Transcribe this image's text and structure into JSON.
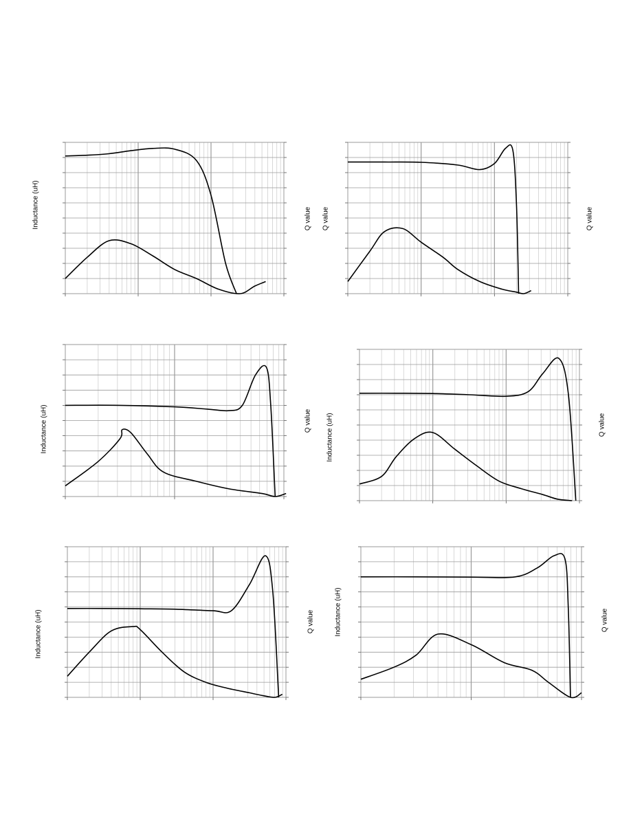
{
  "labels": {
    "left": "Inductance (uH)",
    "right": "Q value"
  },
  "style": {
    "line_color": "#000000",
    "major_grid": "#9a9a9a",
    "minor_grid": "#c8c8c8"
  },
  "chart_data": [
    {
      "type": "line",
      "xscale": "log",
      "x_decades": 3,
      "ylabel_left": "Inductance (uH)",
      "ylabel_right": "Q value",
      "series": [
        {
          "values": [
            [
              0.0,
              0.91
            ],
            [
              0.3,
              0.915
            ],
            [
              0.6,
              0.925
            ],
            [
              0.9,
              0.945
            ],
            [
              1.2,
              0.96
            ],
            [
              1.5,
              0.955
            ],
            [
              1.8,
              0.88
            ],
            [
              2.0,
              0.65
            ],
            [
              2.2,
              0.2
            ],
            [
              2.35,
              0.0
            ]
          ]
        },
        {
          "values": [
            [
              0.0,
              0.1
            ],
            [
              0.3,
              0.24
            ],
            [
              0.6,
              0.35
            ],
            [
              0.9,
              0.33
            ],
            [
              1.2,
              0.25
            ],
            [
              1.5,
              0.16
            ],
            [
              1.8,
              0.1
            ],
            [
              2.1,
              0.03
            ],
            [
              2.4,
              0.0
            ],
            [
              2.6,
              0.05
            ],
            [
              2.75,
              0.08
            ]
          ]
        }
      ]
    },
    {
      "type": "line",
      "xscale": "log",
      "x_decades": 3,
      "ylabel_left": "Q value",
      "ylabel_right": "Q value",
      "series": [
        {
          "values": [
            [
              0.0,
              0.87
            ],
            [
              0.5,
              0.87
            ],
            [
              1.0,
              0.868
            ],
            [
              1.5,
              0.85
            ],
            [
              1.8,
              0.82
            ],
            [
              2.0,
              0.86
            ],
            [
              2.15,
              0.96
            ],
            [
              2.25,
              0.95
            ],
            [
              2.3,
              0.6
            ],
            [
              2.33,
              0.0
            ]
          ]
        },
        {
          "values": [
            [
              0.0,
              0.08
            ],
            [
              0.3,
              0.28
            ],
            [
              0.5,
              0.41
            ],
            [
              0.75,
              0.43
            ],
            [
              1.0,
              0.34
            ],
            [
              1.3,
              0.24
            ],
            [
              1.5,
              0.16
            ],
            [
              1.8,
              0.08
            ],
            [
              2.1,
              0.03
            ],
            [
              2.3,
              0.01
            ],
            [
              2.4,
              0.0
            ],
            [
              2.5,
              0.02
            ]
          ]
        }
      ]
    },
    {
      "type": "line",
      "xscale": "log",
      "x_decades": 2,
      "ylabel_left": "Inductance (uH)",
      "ylabel_right": "Q value",
      "series": [
        {
          "values": [
            [
              0.0,
              0.6
            ],
            [
              0.5,
              0.6
            ],
            [
              1.0,
              0.59
            ],
            [
              1.3,
              0.575
            ],
            [
              1.5,
              0.565
            ],
            [
              1.62,
              0.6
            ],
            [
              1.74,
              0.8
            ],
            [
              1.84,
              0.85
            ],
            [
              1.88,
              0.6
            ],
            [
              1.92,
              0.0
            ]
          ]
        },
        {
          "values": [
            [
              0.0,
              0.07
            ],
            [
              0.3,
              0.23
            ],
            [
              0.5,
              0.38
            ],
            [
              0.52,
              0.44
            ],
            [
              0.6,
              0.42
            ],
            [
              0.75,
              0.28
            ],
            [
              0.9,
              0.16
            ],
            [
              1.2,
              0.1
            ],
            [
              1.5,
              0.05
            ],
            [
              1.8,
              0.02
            ],
            [
              1.92,
              0.0
            ],
            [
              2.02,
              0.02
            ]
          ]
        }
      ]
    },
    {
      "type": "line",
      "xscale": "log",
      "x_decades": 3,
      "ylabel_left": "Inductance (uH)",
      "ylabel_right": "Q value",
      "series": [
        {
          "values": [
            [
              0.0,
              0.71
            ],
            [
              0.5,
              0.71
            ],
            [
              1.0,
              0.708
            ],
            [
              1.5,
              0.7
            ],
            [
              2.0,
              0.69
            ],
            [
              2.3,
              0.72
            ],
            [
              2.5,
              0.84
            ],
            [
              2.72,
              0.94
            ],
            [
              2.85,
              0.7
            ],
            [
              2.95,
              0.0
            ]
          ]
        },
        {
          "values": [
            [
              0.0,
              0.11
            ],
            [
              0.3,
              0.16
            ],
            [
              0.5,
              0.29
            ],
            [
              0.75,
              0.41
            ],
            [
              1.0,
              0.45
            ],
            [
              1.3,
              0.34
            ],
            [
              1.6,
              0.23
            ],
            [
              1.9,
              0.13
            ],
            [
              2.2,
              0.08
            ],
            [
              2.5,
              0.04
            ],
            [
              2.7,
              0.01
            ],
            [
              2.9,
              0.0
            ]
          ]
        }
      ]
    },
    {
      "type": "line",
      "xscale": "log",
      "x_decades": 3,
      "ylabel_left": "Inductance (uH)",
      "ylabel_right": "Q value",
      "series": [
        {
          "values": [
            [
              0.0,
              0.59
            ],
            [
              0.5,
              0.59
            ],
            [
              1.0,
              0.588
            ],
            [
              1.5,
              0.585
            ],
            [
              2.0,
              0.575
            ],
            [
              2.25,
              0.575
            ],
            [
              2.5,
              0.75
            ],
            [
              2.72,
              0.94
            ],
            [
              2.82,
              0.7
            ],
            [
              2.9,
              0.0
            ]
          ]
        },
        {
          "values": [
            [
              0.0,
              0.14
            ],
            [
              0.3,
              0.3
            ],
            [
              0.6,
              0.44
            ],
            [
              0.9,
              0.47
            ],
            [
              1.0,
              0.45
            ],
            [
              1.3,
              0.3
            ],
            [
              1.6,
              0.17
            ],
            [
              1.9,
              0.1
            ],
            [
              2.2,
              0.06
            ],
            [
              2.5,
              0.03
            ],
            [
              2.7,
              0.01
            ],
            [
              2.85,
              0.0
            ],
            [
              2.95,
              0.02
            ]
          ]
        }
      ]
    },
    {
      "type": "line",
      "xscale": "log",
      "x_decades": 2,
      "ylabel_left": "Inductance (uH)",
      "ylabel_right": "Q value",
      "series": [
        {
          "values": [
            [
              0.0,
              0.8
            ],
            [
              0.5,
              0.8
            ],
            [
              1.0,
              0.798
            ],
            [
              1.4,
              0.8
            ],
            [
              1.6,
              0.86
            ],
            [
              1.75,
              0.94
            ],
            [
              1.85,
              0.92
            ],
            [
              1.88,
              0.6
            ],
            [
              1.9,
              0.0
            ]
          ]
        },
        {
          "values": [
            [
              0.0,
              0.12
            ],
            [
              0.3,
              0.2
            ],
            [
              0.5,
              0.28
            ],
            [
              0.7,
              0.42
            ],
            [
              1.0,
              0.35
            ],
            [
              1.3,
              0.23
            ],
            [
              1.55,
              0.18
            ],
            [
              1.7,
              0.1
            ],
            [
              1.9,
              0.0
            ],
            [
              2.0,
              0.03
            ]
          ]
        }
      ]
    }
  ]
}
